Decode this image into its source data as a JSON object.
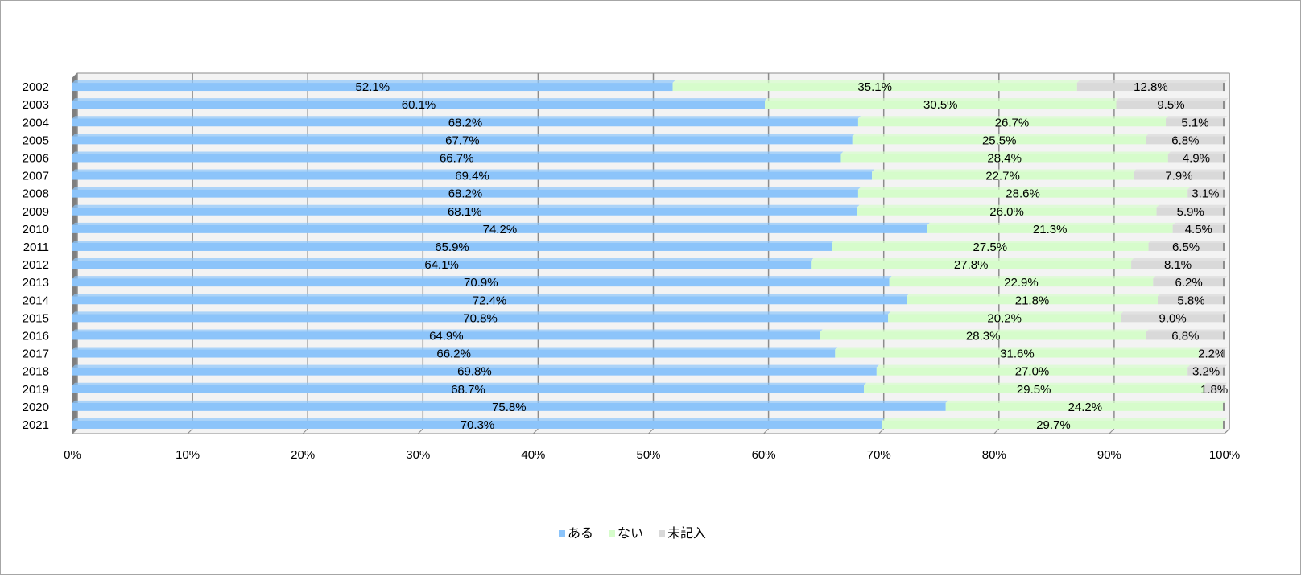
{
  "chart_data": {
    "type": "bar",
    "orientation": "horizontal",
    "stacked": "percent",
    "title": "",
    "xlabel": "",
    "ylabel": "",
    "xlim": [
      0,
      100
    ],
    "x_ticks": [
      "0%",
      "10%",
      "20%",
      "30%",
      "40%",
      "50%",
      "60%",
      "70%",
      "80%",
      "90%",
      "100%"
    ],
    "grid": true,
    "legend_position": "bottom",
    "categories": [
      "2002",
      "2003",
      "2004",
      "2005",
      "2006",
      "2007",
      "2008",
      "2009",
      "2010",
      "2011",
      "2012",
      "2013",
      "2014",
      "2015",
      "2016",
      "2017",
      "2018",
      "2019",
      "2020",
      "2021"
    ],
    "series": [
      {
        "name": "ある",
        "color": "#8cc4fa",
        "values": [
          52.1,
          60.1,
          68.2,
          67.7,
          66.7,
          69.4,
          68.2,
          68.1,
          74.2,
          65.9,
          64.1,
          70.9,
          72.4,
          70.8,
          64.9,
          66.2,
          69.8,
          68.7,
          75.8,
          70.3
        ],
        "labels": [
          "52.1%",
          "60.1%",
          "68.2%",
          "67.7%",
          "66.7%",
          "69.4%",
          "68.2%",
          "68.1%",
          "74.2%",
          "65.9%",
          "64.1%",
          "70.9%",
          "72.4%",
          "70.8%",
          "64.9%",
          "66.2%",
          "69.8%",
          "68.7%",
          "75.8%",
          "70.3%"
        ]
      },
      {
        "name": "ない",
        "color": "#d6fccb",
        "values": [
          35.1,
          30.5,
          26.7,
          25.5,
          28.4,
          22.7,
          28.6,
          26.0,
          21.3,
          27.5,
          27.8,
          22.9,
          21.8,
          20.2,
          28.3,
          31.6,
          27.0,
          29.5,
          24.2,
          29.7
        ],
        "labels": [
          "35.1%",
          "30.5%",
          "26.7%",
          "25.5%",
          "28.4%",
          "22.7%",
          "28.6%",
          "26.0%",
          "21.3%",
          "27.5%",
          "27.8%",
          "22.9%",
          "21.8%",
          "20.2%",
          "28.3%",
          "31.6%",
          "27.0%",
          "29.5%",
          "24.2%",
          "29.7%"
        ]
      },
      {
        "name": "未記入",
        "color": "#d9d9d9",
        "values": [
          12.8,
          9.5,
          5.1,
          6.8,
          4.9,
          7.9,
          3.1,
          5.9,
          4.5,
          6.5,
          8.1,
          6.2,
          5.8,
          9.0,
          6.8,
          2.2,
          3.2,
          1.8,
          0,
          0
        ],
        "labels": [
          "12.8%",
          "9.5%",
          "5.1%",
          "6.8%",
          "4.9%",
          "7.9%",
          "3.1%",
          "5.9%",
          "4.5%",
          "6.5%",
          "8.1%",
          "6.2%",
          "5.8%",
          "9.0%",
          "6.8%",
          "2.2%",
          "3.2%",
          "1.8%",
          "",
          ""
        ]
      }
    ]
  }
}
